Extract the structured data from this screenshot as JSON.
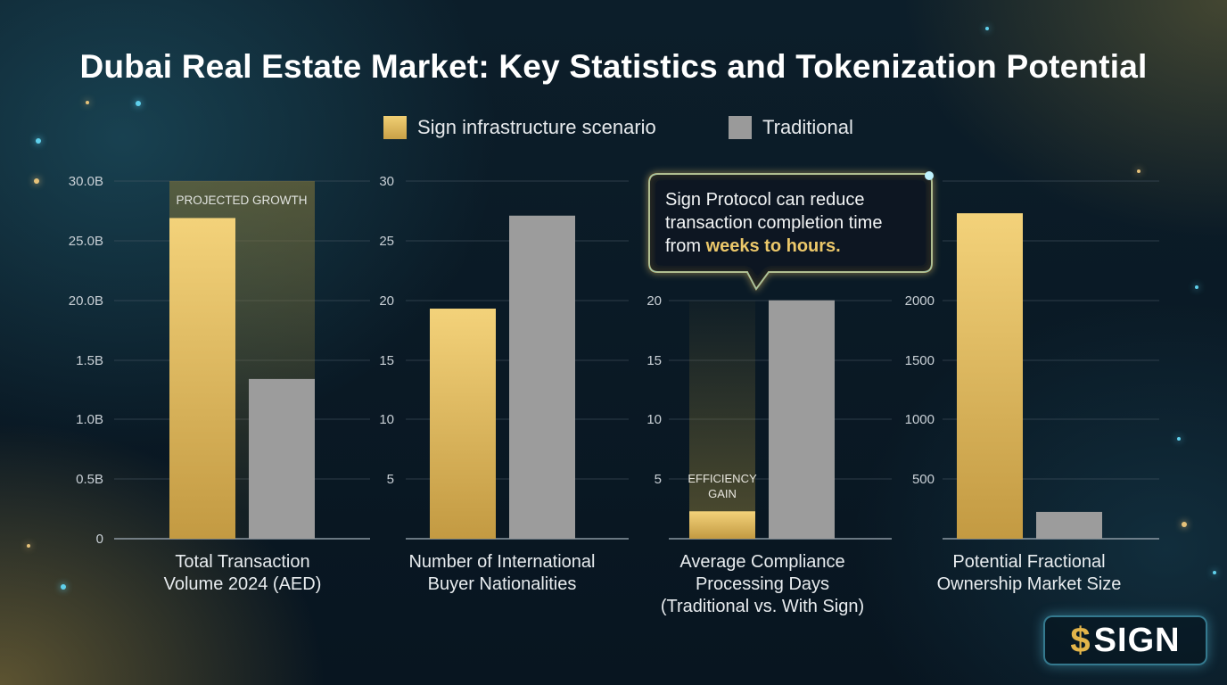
{
  "title": "Dubai Real Estate Market: Key Statistics and Tokenization Potential",
  "legend": [
    {
      "label": "Sign infrastructure scenario",
      "color": "#e9c56b"
    },
    {
      "label": "Traditional",
      "color": "#9a9a9a"
    }
  ],
  "logo": {
    "glyph": "$",
    "text": "SIGN"
  },
  "callout": {
    "line1": "Sign Protocol can reduce",
    "line2": "transaction completion time",
    "line3_prefix": "from ",
    "line3_highlight": "weeks to hours."
  },
  "chart_data": {
    "type": "bar",
    "title": "Dubai Real Estate Market: Key Statistics and Tokenization Potential",
    "series_names": [
      "Sign infrastructure scenario",
      "Traditional"
    ],
    "panels": [
      {
        "category": [
          "Total Transaction",
          "Volume 2024 (AED)"
        ],
        "ticks": [
          "0",
          "0.5B",
          "1.0B",
          "1.5B",
          "20.0B",
          "25.0B",
          "30.0B"
        ],
        "ylim": [
          0,
          30
        ],
        "values": {
          "sign": 26.9,
          "traditional": 13.4
        },
        "annotation": [
          "PROJECTED GROWTH"
        ]
      },
      {
        "category": [
          "Number of International",
          "Buyer Nationalities"
        ],
        "ticks": [
          "5",
          "10",
          "15",
          "20",
          "25",
          "30"
        ],
        "ylim": [
          0,
          30
        ],
        "values": {
          "sign": 19.3,
          "traditional": 27.1
        },
        "annotation": []
      },
      {
        "category": [
          "Average Compliance",
          "Processing Days",
          "(Traditional vs. With Sign)"
        ],
        "ticks": [
          "5",
          "10",
          "15",
          "20"
        ],
        "ylim": [
          0,
          30
        ],
        "values": {
          "sign": 2.3,
          "traditional": 20.0
        },
        "annotation": [
          "EFFICIENCY",
          "GAIN"
        ]
      },
      {
        "category": [
          "Potential Fractional",
          "Ownership Market Size"
        ],
        "ticks": [
          "500",
          "1000",
          "1500",
          "2000"
        ],
        "ylim": [
          0,
          3000
        ],
        "values": {
          "sign": 2730,
          "traditional": 225
        },
        "annotation": []
      }
    ]
  }
}
